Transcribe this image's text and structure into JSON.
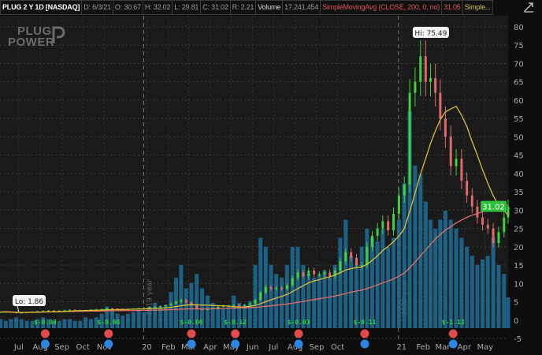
{
  "header": {
    "symbol": "PLUG 2 Y 1D [NASDAQ]",
    "date": "D: 6/3/21",
    "open": "O: 30.67",
    "high": "H: 32.02",
    "low": "L: 29.81",
    "close": "C: 31.02",
    "range": "R: 2.21",
    "volume_label": "Volume",
    "volume_value": "17,241,454",
    "study1": "SimpleMovingAvg (CLOSE, 200, 0, no)",
    "study1_value": "31.05",
    "study2": "Simple...",
    "expand_icon": "maximize-icon"
  },
  "logo": {
    "line1": "PLUG",
    "line2": "POWER"
  },
  "colors": {
    "background": "#1a1a1a",
    "up": "#3fcf3f",
    "down": "#e06a6a",
    "volume": "#1f6f99",
    "sma200": "#e0706a",
    "sma_short": "#d8c035",
    "price_badge": "#2fbf3a",
    "earnings": "#e04b4b",
    "dividend": "#2a86e0",
    "earnings_text": "#2fcf3a"
  },
  "chart_data": {
    "type": "candlestick",
    "ylim": [
      -5,
      80
    ],
    "yticks": [
      "80",
      "75",
      "70",
      "65",
      "60",
      "55",
      "50",
      "45",
      "40",
      "35",
      "30",
      "25",
      "20",
      "15",
      "10",
      "5",
      "0",
      "-5"
    ],
    "grid": true,
    "hi_label": "Hi: 75.49",
    "lo_label": "Lo: 1.86",
    "last_price": "31.02",
    "year_labels": [
      {
        "date": "2020-01-01",
        "text": "2019 year"
      },
      {
        "date": "2021-01-01",
        "text": "2020 year"
      }
    ],
    "xticks": [
      {
        "date": "2019-07-01",
        "text": "Jul"
      },
      {
        "date": "2019-08-01",
        "text": "Aug"
      },
      {
        "date": "2019-09-01",
        "text": "Sep"
      },
      {
        "date": "2019-10-01",
        "text": "Oct"
      },
      {
        "date": "2019-11-01",
        "text": "Nov"
      },
      {
        "date": "2020-01-01",
        "text": "20"
      },
      {
        "date": "2020-02-01",
        "text": "Feb"
      },
      {
        "date": "2020-03-01",
        "text": "Mar"
      },
      {
        "date": "2020-04-01",
        "text": "Apr"
      },
      {
        "date": "2020-05-01",
        "text": "May"
      },
      {
        "date": "2020-06-01",
        "text": "Jun"
      },
      {
        "date": "2020-07-01",
        "text": "Jul"
      },
      {
        "date": "2020-08-01",
        "text": "Aug"
      },
      {
        "date": "2020-09-01",
        "text": "Sep"
      },
      {
        "date": "2020-10-01",
        "text": "Oct"
      },
      {
        "date": "2021-01-01",
        "text": "21"
      },
      {
        "date": "2021-02-01",
        "text": "Feb"
      },
      {
        "date": "2021-03-01",
        "text": "Mar"
      },
      {
        "date": "2021-04-01",
        "text": "Apr"
      },
      {
        "date": "2021-05-01",
        "text": "May"
      }
    ],
    "earnings": [
      {
        "date": "2019-08-08",
        "text": "$-0.08"
      },
      {
        "date": "2019-11-07",
        "text": "$-0.08"
      },
      {
        "date": "2020-03-05",
        "text": "$-0.06"
      },
      {
        "date": "2020-05-07",
        "text": "$-0.12"
      },
      {
        "date": "2020-08-06",
        "text": "$-0.03"
      },
      {
        "date": "2020-11-09",
        "text": "$-0.11"
      },
      {
        "date": "2021-03-16",
        "text": "$-1.13"
      }
    ],
    "months": [
      {
        "m": "2019-06",
        "c": [
          2.2,
          2.3,
          2.1,
          1.95
        ],
        "v": [
          5,
          4,
          5,
          6
        ]
      },
      {
        "m": "2019-07",
        "c": [
          2.0,
          2.1,
          2.3,
          2.4
        ],
        "v": [
          5,
          4,
          4,
          5
        ]
      },
      {
        "m": "2019-08",
        "c": [
          2.5,
          2.6,
          2.5,
          2.6
        ],
        "v": [
          6,
          5,
          4,
          4
        ]
      },
      {
        "m": "2019-09",
        "c": [
          2.7,
          2.8,
          2.7,
          2.6
        ],
        "v": [
          5,
          5,
          4,
          4
        ]
      },
      {
        "m": "2019-10",
        "c": [
          2.7,
          2.8,
          2.9,
          3.0
        ],
        "v": [
          6,
          5,
          6,
          8
        ]
      },
      {
        "m": "2019-11",
        "c": [
          3.2,
          3.1,
          3.0,
          3.0
        ],
        "v": [
          12,
          10,
          8,
          7
        ]
      },
      {
        "m": "2019-12",
        "c": [
          3.0,
          3.1,
          3.2,
          3.2
        ],
        "v": [
          8,
          9,
          10,
          9
        ]
      },
      {
        "m": "2020-01",
        "c": [
          3.5,
          3.6,
          3.8,
          4.0
        ],
        "v": [
          12,
          14,
          12,
          13
        ]
      },
      {
        "m": "2020-02",
        "c": [
          4.5,
          5.0,
          5.5,
          4.8
        ],
        "v": [
          20,
          28,
          35,
          22
        ]
      },
      {
        "m": "2020-03",
        "c": [
          4.0,
          3.0,
          2.8,
          3.1
        ],
        "v": [
          25,
          30,
          22,
          18
        ]
      },
      {
        "m": "2020-04",
        "c": [
          3.3,
          3.6,
          3.9,
          4.0
        ],
        "v": [
          14,
          12,
          11,
          12
        ]
      },
      {
        "m": "2020-05",
        "c": [
          4.1,
          4.0,
          4.2,
          4.5
        ],
        "v": [
          18,
          14,
          13,
          15
        ]
      },
      {
        "m": "2020-06",
        "c": [
          5.5,
          7.5,
          9.0,
          8.5
        ],
        "v": [
          35,
          50,
          45,
          35
        ]
      },
      {
        "m": "2020-07",
        "c": [
          8.8,
          8.5,
          9.5,
          11.5
        ],
        "v": [
          30,
          28,
          35,
          45
        ]
      },
      {
        "m": "2020-08",
        "c": [
          13.0,
          12.0,
          13.5,
          12.5
        ],
        "v": [
          45,
          35,
          30,
          28
        ]
      },
      {
        "m": "2020-09",
        "c": [
          12.5,
          13.0,
          12.0,
          13.5
        ],
        "v": [
          30,
          32,
          28,
          35
        ]
      },
      {
        "m": "2020-10",
        "c": [
          16.0,
          18.5,
          17.0,
          15.0
        ],
        "v": [
          50,
          60,
          40,
          35
        ]
      },
      {
        "m": "2020-11",
        "c": [
          15.0,
          20.0,
          23.0,
          25.0
        ],
        "v": [
          45,
          55,
          50,
          48
        ]
      },
      {
        "m": "2020-12",
        "c": [
          27.0,
          24.5,
          29.0,
          34.0
        ],
        "v": [
          55,
          45,
          50,
          60
        ]
      },
      {
        "m": "2021-01",
        "c": [
          37.0,
          62.0,
          65.0,
          72.0
        ],
        "v": [
          80,
          120,
          90,
          85
        ]
      },
      {
        "m": "2021-02",
        "c": [
          65.0,
          66.0,
          62.0,
          55.0
        ],
        "v": [
          70,
          60,
          55,
          60
        ]
      },
      {
        "m": "2021-03",
        "c": [
          50.0,
          42.0,
          44.0,
          38.0
        ],
        "v": [
          65,
          60,
          55,
          50
        ]
      },
      {
        "m": "2021-04",
        "c": [
          34.0,
          31.0,
          28.0,
          26.0
        ],
        "v": [
          45,
          40,
          35,
          38
        ]
      },
      {
        "m": "2021-05",
        "c": [
          25.0,
          21.0,
          24.0,
          28.0
        ],
        "v": [
          40,
          50,
          35,
          30
        ]
      },
      {
        "m": "2021-06",
        "c": [
          31.02
        ],
        "v": [
          17
        ]
      }
    ]
  }
}
